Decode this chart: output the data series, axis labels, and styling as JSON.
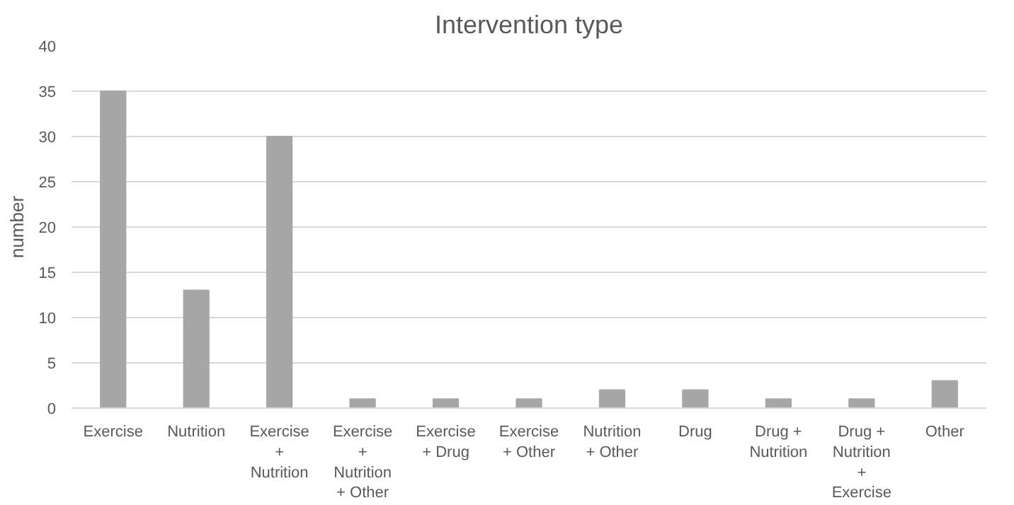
{
  "chart_data": {
    "type": "bar",
    "title": "Intervention type",
    "ylabel": "number",
    "categories": [
      "Exercise",
      "Nutrition",
      "Exercise + Nutrition",
      "Exercise + Nutrition + Other",
      "Exercise + Drug",
      "Exercise + Other",
      "Nutrition + Other",
      "Drug",
      "Drug + Nutrition",
      "Drug + Nutrition + Exercise",
      "Other"
    ],
    "values": [
      35,
      13,
      30,
      1,
      1,
      1,
      2,
      2,
      1,
      1,
      3
    ],
    "color": "#a6a6a6",
    "ylim": [
      0,
      40
    ],
    "yticks": [
      0,
      5,
      10,
      15,
      20,
      25,
      30,
      35,
      40
    ],
    "grid": "y"
  }
}
